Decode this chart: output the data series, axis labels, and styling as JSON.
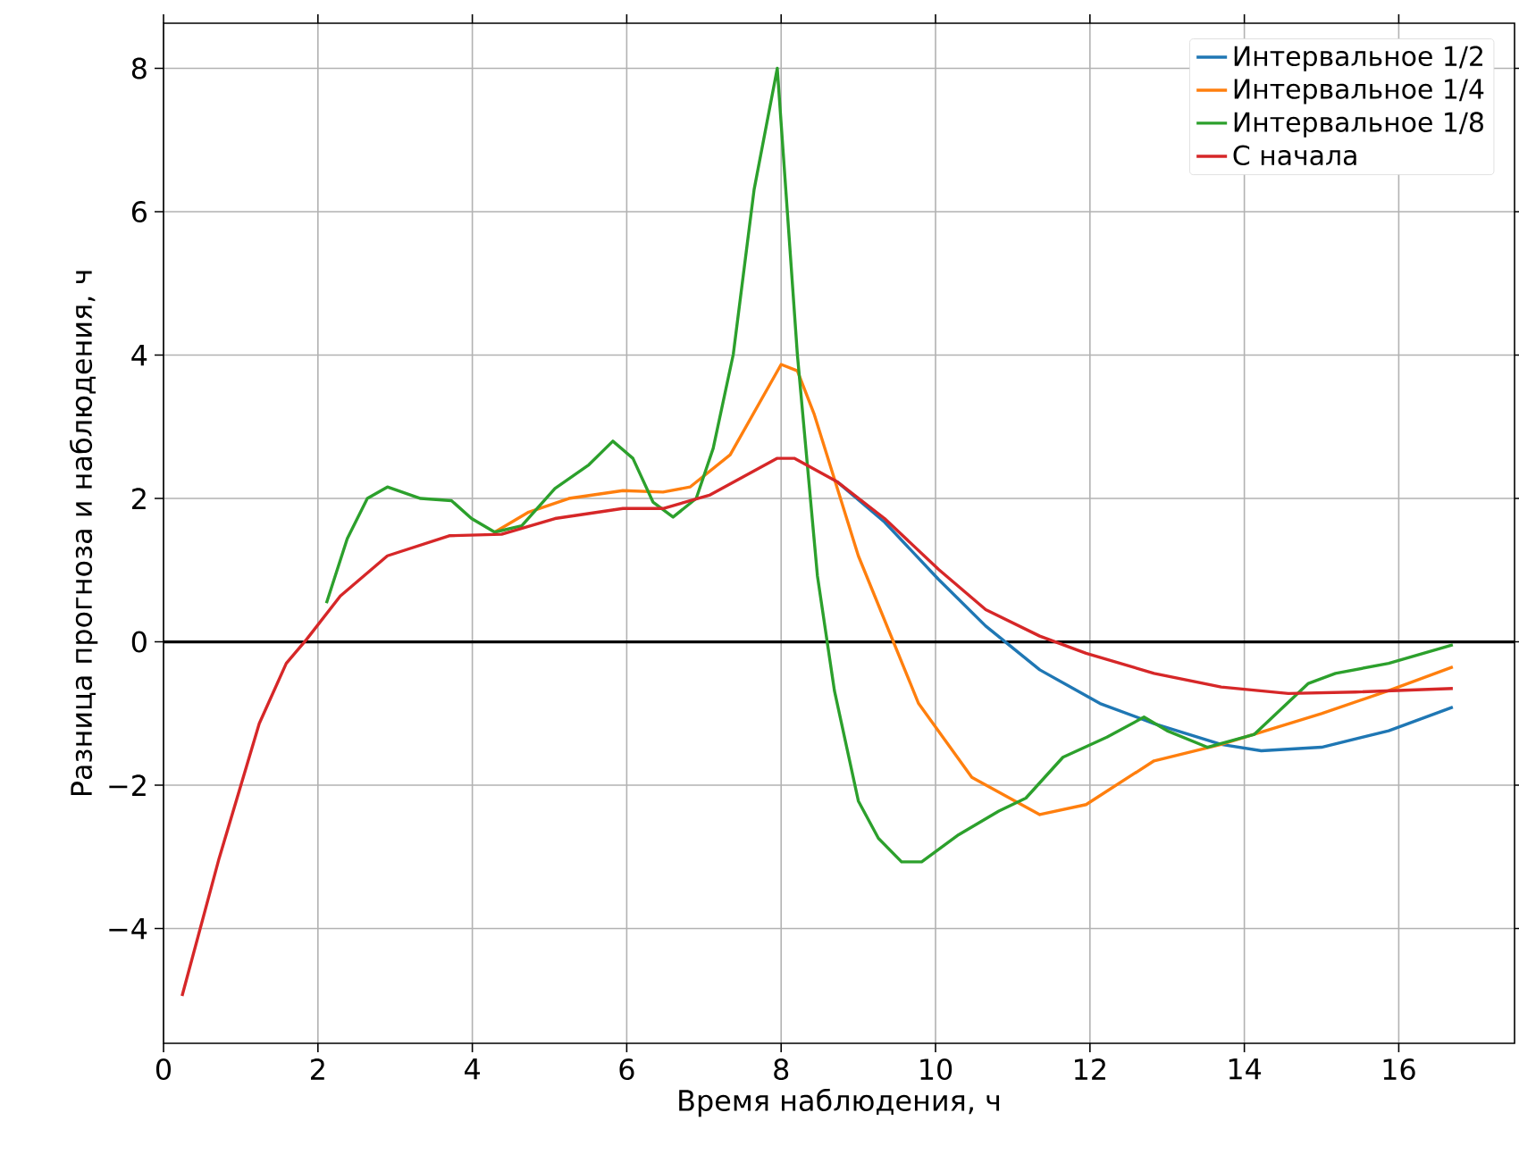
{
  "chart_data": {
    "type": "line",
    "xlabel": "Время наблюдения, ч",
    "ylabel": "Разница прогноза и наблюдения, ч",
    "xlim": [
      0,
      17.5
    ],
    "ylim": [
      -5.6,
      8.63
    ],
    "xticks": [
      0,
      2,
      4,
      6,
      8,
      10,
      12,
      14,
      16
    ],
    "yticks": [
      {
        "value": -4,
        "label": "−4"
      },
      {
        "value": -2,
        "label": "−2"
      },
      0,
      2,
      4,
      6,
      8
    ],
    "grid": true,
    "legend": "top right",
    "line_style": "solid",
    "marker": "none",
    "ref_lines": [
      {
        "axis": "y",
        "value": 0,
        "color": "#000000"
      }
    ],
    "series": [
      {
        "name": "Интервальное 1/2",
        "color": "#1f77b4",
        "x": [
          8.73,
          9.34,
          10.04,
          10.65,
          11.35,
          12.13,
          12.83,
          13.7,
          14.22,
          15.0,
          15.87,
          16.7
        ],
        "values": [
          2.23,
          1.67,
          0.87,
          0.22,
          -0.39,
          -0.86,
          -1.14,
          -1.43,
          -1.52,
          -1.47,
          -1.24,
          -0.91
        ]
      },
      {
        "name": "Интервальное 1/4",
        "color": "#ff7f0e",
        "x": [
          4.29,
          4.73,
          5.25,
          5.95,
          6.47,
          6.82,
          7.34,
          8.0,
          8.21,
          8.43,
          9.0,
          9.78,
          10.47,
          11.35,
          11.95,
          12.83,
          13.7,
          15.0,
          15.87,
          16.7
        ],
        "values": [
          1.53,
          1.81,
          2.0,
          2.11,
          2.09,
          2.16,
          2.61,
          3.87,
          3.78,
          3.17,
          1.2,
          -0.86,
          -1.89,
          -2.41,
          -2.27,
          -1.66,
          -1.43,
          -1.0,
          -0.68,
          -0.35
        ]
      },
      {
        "name": "Интервальное 1/8",
        "color": "#2ca02c",
        "x": [
          2.11,
          2.38,
          2.64,
          2.9,
          3.33,
          3.73,
          3.99,
          4.29,
          4.64,
          5.07,
          5.51,
          5.82,
          6.08,
          6.34,
          6.6,
          6.9,
          7.12,
          7.38,
          7.65,
          7.95,
          8.21,
          8.47,
          8.69,
          9.0,
          9.26,
          9.56,
          9.82,
          10.3,
          10.82,
          11.17,
          11.65,
          12.22,
          12.7,
          13.0,
          13.52,
          14.13,
          14.83,
          15.18,
          15.87,
          16.7
        ],
        "values": [
          0.54,
          1.44,
          2.0,
          2.16,
          2.0,
          1.97,
          1.72,
          1.53,
          1.62,
          2.14,
          2.47,
          2.8,
          2.56,
          1.95,
          1.74,
          2.0,
          2.7,
          4.01,
          6.31,
          8.0,
          4.01,
          0.92,
          -0.68,
          -2.22,
          -2.74,
          -3.07,
          -3.07,
          -2.69,
          -2.36,
          -2.18,
          -1.61,
          -1.33,
          -1.05,
          -1.24,
          -1.47,
          -1.29,
          -0.58,
          -0.44,
          -0.3,
          -0.04
        ]
      },
      {
        "name": "С начала",
        "color": "#d62728",
        "x": [
          0.24,
          0.72,
          1.24,
          1.59,
          1.85,
          2.29,
          2.9,
          3.7,
          4.38,
          5.07,
          5.95,
          6.47,
          7.08,
          7.95,
          8.17,
          8.73,
          9.34,
          10.04,
          10.65,
          11.35,
          11.95,
          12.83,
          13.7,
          14.57,
          15.44,
          16.7
        ],
        "values": [
          -4.94,
          -3.02,
          -1.14,
          -0.3,
          0.03,
          0.64,
          1.2,
          1.48,
          1.5,
          1.72,
          1.86,
          1.86,
          2.05,
          2.56,
          2.56,
          2.23,
          1.72,
          1.01,
          0.45,
          0.08,
          -0.16,
          -0.44,
          -0.63,
          -0.72,
          -0.7,
          -0.65
        ]
      }
    ]
  }
}
